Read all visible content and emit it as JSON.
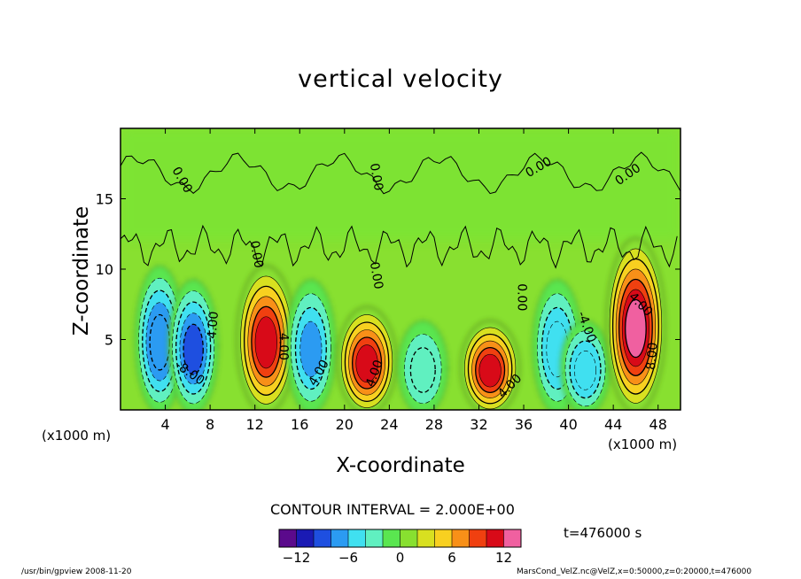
{
  "chart_data": {
    "type": "heatmap",
    "title": "vertical velocity",
    "xlabel": "X-coordinate",
    "ylabel": "Z-coordinate",
    "xlim": [
      0,
      50
    ],
    "ylim": [
      0,
      20
    ],
    "x_ticks": [
      4,
      8,
      12,
      16,
      20,
      24,
      28,
      32,
      36,
      40,
      44,
      48
    ],
    "y_ticks": [
      5,
      10,
      15
    ],
    "x_unit": "(x1000 m)",
    "y_unit": "(x1000 m)",
    "contour_interval": "CONTOUR INTERVAL = 2.000E+00",
    "contour_labels": [
      "0.00",
      "4.00",
      "8.00",
      "-4.00",
      "-8.00"
    ],
    "colorbar": {
      "min": -14,
      "max": 14,
      "ticks": [
        -12,
        -6,
        0,
        6,
        12
      ],
      "colors": [
        "#5b0a8c",
        "#1a1ab4",
        "#1e4fe0",
        "#2b9bf2",
        "#40e0f0",
        "#60f0c0",
        "#5ae650",
        "#88e030",
        "#d8e020",
        "#f8d020",
        "#f89018",
        "#f04010",
        "#d80a18",
        "#f060a0"
      ]
    },
    "anomalies": [
      {
        "x": 3.5,
        "z": 5.0,
        "value": -9,
        "kind": "downdraft"
      },
      {
        "x": 6.5,
        "z": 4.5,
        "value": -10,
        "kind": "downdraft"
      },
      {
        "x": 13.0,
        "z": 5.0,
        "value": 11,
        "kind": "updraft"
      },
      {
        "x": 17.0,
        "z": 4.5,
        "value": -8,
        "kind": "downdraft"
      },
      {
        "x": 22.0,
        "z": 3.5,
        "value": 12,
        "kind": "updraft"
      },
      {
        "x": 27.0,
        "z": 3.0,
        "value": -5,
        "kind": "downdraft"
      },
      {
        "x": 33.0,
        "z": 3.0,
        "value": 11,
        "kind": "updraft"
      },
      {
        "x": 39.0,
        "z": 4.5,
        "value": -7,
        "kind": "downdraft"
      },
      {
        "x": 41.5,
        "z": 3.0,
        "value": -7,
        "kind": "downdraft"
      },
      {
        "x": 46.0,
        "z": 6.0,
        "value": 13,
        "kind": "updraft"
      }
    ]
  },
  "time_label": "t=476000 s",
  "footer_left": "/usr/bin/gpview  2008-11-20",
  "footer_right": "MarsCond_VelZ.nc@VelZ,x=0:50000,z=0:20000,t=476000"
}
